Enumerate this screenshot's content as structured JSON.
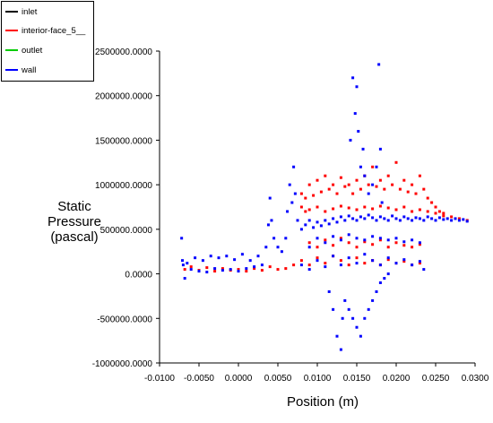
{
  "chart_data": {
    "type": "scatter",
    "xlabel": "Position (m)",
    "ylabel": [
      "Static",
      "Pressure",
      "(pascal)"
    ],
    "xlim": [
      -0.01,
      0.03
    ],
    "ylim": [
      -1000000,
      2500000
    ],
    "x_ticks": [
      -0.01,
      -0.005,
      0.0,
      0.005,
      0.01,
      0.015,
      0.02,
      0.025,
      0.03
    ],
    "x_tick_labels": [
      "-0.0100",
      "-0.0050",
      "0.0000",
      "0.0050",
      "0.0100",
      "0.0150",
      "0.0200",
      "0.0250",
      "0.0300"
    ],
    "y_ticks": [
      -1000000,
      -500000,
      0,
      500000,
      1000000,
      1500000,
      2000000,
      2500000
    ],
    "y_tick_labels": [
      "-1000000.0000",
      "-500000.0000",
      "0.0000",
      "500000.0000",
      "1000000.0000",
      "1500000.0000",
      "2000000.0000",
      "2500000.0000"
    ],
    "legend_position": "top-left",
    "series": [
      {
        "name": "inlet",
        "color": "#000000",
        "points": []
      },
      {
        "name": "interior-face_5__",
        "color": "#ff0000",
        "points": [
          [
            -0.0068,
            50000
          ],
          [
            -0.006,
            80000
          ],
          [
            -0.005,
            40000
          ],
          [
            -0.004,
            70000
          ],
          [
            -0.003,
            30000
          ],
          [
            -0.002,
            60000
          ],
          [
            -0.001,
            40000
          ],
          [
            0.0,
            50000
          ],
          [
            0.001,
            30000
          ],
          [
            0.002,
            60000
          ],
          [
            0.003,
            40000
          ],
          [
            0.004,
            80000
          ],
          [
            0.005,
            50000
          ],
          [
            0.006,
            60000
          ],
          [
            0.007,
            100000
          ],
          [
            0.008,
            900000
          ],
          [
            0.0085,
            850000
          ],
          [
            0.009,
            1000000
          ],
          [
            0.0095,
            880000
          ],
          [
            0.01,
            1050000
          ],
          [
            0.0105,
            920000
          ],
          [
            0.011,
            1100000
          ],
          [
            0.0115,
            950000
          ],
          [
            0.012,
            1000000
          ],
          [
            0.0125,
            900000
          ],
          [
            0.013,
            1080000
          ],
          [
            0.0135,
            980000
          ],
          [
            0.014,
            1000000
          ],
          [
            0.0145,
            900000
          ],
          [
            0.015,
            1050000
          ],
          [
            0.0155,
            950000
          ],
          [
            0.016,
            1100000
          ],
          [
            0.0165,
            1000000
          ],
          [
            0.017,
            1200000
          ],
          [
            0.0175,
            980000
          ],
          [
            0.018,
            1050000
          ],
          [
            0.0185,
            950000
          ],
          [
            0.019,
            1100000
          ],
          [
            0.0195,
            1000000
          ],
          [
            0.02,
            1250000
          ],
          [
            0.0205,
            950000
          ],
          [
            0.021,
            1050000
          ],
          [
            0.0215,
            920000
          ],
          [
            0.022,
            1000000
          ],
          [
            0.0225,
            900000
          ],
          [
            0.023,
            1100000
          ],
          [
            0.0235,
            950000
          ],
          [
            0.024,
            850000
          ],
          [
            0.0245,
            800000
          ],
          [
            0.025,
            750000
          ],
          [
            0.0255,
            700000
          ],
          [
            0.026,
            680000
          ],
          [
            0.008,
            750000
          ],
          [
            0.0085,
            700000
          ],
          [
            0.009,
            720000
          ],
          [
            0.01,
            750000
          ],
          [
            0.011,
            700000
          ],
          [
            0.012,
            730000
          ],
          [
            0.013,
            760000
          ],
          [
            0.014,
            740000
          ],
          [
            0.015,
            720000
          ],
          [
            0.016,
            750000
          ],
          [
            0.017,
            730000
          ],
          [
            0.018,
            760000
          ],
          [
            0.019,
            740000
          ],
          [
            0.02,
            720000
          ],
          [
            0.021,
            750000
          ],
          [
            0.022,
            700000
          ],
          [
            0.023,
            720000
          ],
          [
            0.024,
            700000
          ],
          [
            0.025,
            680000
          ],
          [
            0.026,
            650000
          ],
          [
            0.027,
            640000
          ],
          [
            0.028,
            620000
          ],
          [
            0.029,
            600000
          ],
          [
            0.009,
            350000
          ],
          [
            0.01,
            300000
          ],
          [
            0.011,
            380000
          ],
          [
            0.012,
            320000
          ],
          [
            0.013,
            400000
          ],
          [
            0.014,
            350000
          ],
          [
            0.015,
            300000
          ],
          [
            0.016,
            360000
          ],
          [
            0.017,
            330000
          ],
          [
            0.018,
            380000
          ],
          [
            0.019,
            300000
          ],
          [
            0.02,
            350000
          ],
          [
            0.021,
            320000
          ],
          [
            0.022,
            300000
          ],
          [
            0.023,
            330000
          ],
          [
            0.008,
            150000
          ],
          [
            0.009,
            100000
          ],
          [
            0.01,
            180000
          ],
          [
            0.011,
            120000
          ],
          [
            0.012,
            200000
          ],
          [
            0.013,
            150000
          ],
          [
            0.014,
            100000
          ],
          [
            0.015,
            180000
          ],
          [
            0.016,
            120000
          ],
          [
            0.017,
            150000
          ],
          [
            0.018,
            100000
          ],
          [
            0.019,
            160000
          ],
          [
            0.02,
            120000
          ],
          [
            0.021,
            140000
          ],
          [
            0.022,
            100000
          ],
          [
            0.023,
            120000
          ]
        ]
      },
      {
        "name": "outlet",
        "color": "#00cc00",
        "points": []
      },
      {
        "name": "wall",
        "color": "#0000ff",
        "points": [
          [
            -0.0072,
            400000
          ],
          [
            -0.0071,
            150000
          ],
          [
            -0.007,
            100000
          ],
          [
            -0.0068,
            -50000
          ],
          [
            -0.0065,
            120000
          ],
          [
            -0.006,
            50000
          ],
          [
            -0.0055,
            180000
          ],
          [
            -0.005,
            30000
          ],
          [
            -0.0045,
            150000
          ],
          [
            -0.004,
            20000
          ],
          [
            -0.0035,
            200000
          ],
          [
            -0.003,
            60000
          ],
          [
            -0.0025,
            180000
          ],
          [
            -0.002,
            40000
          ],
          [
            -0.0015,
            200000
          ],
          [
            -0.001,
            50000
          ],
          [
            -0.0005,
            160000
          ],
          [
            0.0,
            30000
          ],
          [
            0.0005,
            220000
          ],
          [
            0.001,
            60000
          ],
          [
            0.0015,
            150000
          ],
          [
            0.002,
            80000
          ],
          [
            0.0025,
            200000
          ],
          [
            0.003,
            100000
          ],
          [
            0.0035,
            300000
          ],
          [
            0.0038,
            550000
          ],
          [
            0.004,
            850000
          ],
          [
            0.0042,
            600000
          ],
          [
            0.0045,
            400000
          ],
          [
            0.005,
            300000
          ],
          [
            0.0055,
            250000
          ],
          [
            0.006,
            400000
          ],
          [
            0.0062,
            700000
          ],
          [
            0.0065,
            1000000
          ],
          [
            0.0068,
            800000
          ],
          [
            0.007,
            1200000
          ],
          [
            0.0072,
            900000
          ],
          [
            0.0075,
            600000
          ],
          [
            0.008,
            500000
          ],
          [
            0.0085,
            550000
          ],
          [
            0.009,
            600000
          ],
          [
            0.0095,
            520000
          ],
          [
            0.01,
            580000
          ],
          [
            0.0105,
            540000
          ],
          [
            0.011,
            600000
          ],
          [
            0.0115,
            560000
          ],
          [
            0.012,
            620000
          ],
          [
            0.0125,
            580000
          ],
          [
            0.013,
            640000
          ],
          [
            0.0135,
            600000
          ],
          [
            0.014,
            650000
          ],
          [
            0.0145,
            620000
          ],
          [
            0.015,
            600000
          ],
          [
            0.0155,
            640000
          ],
          [
            0.016,
            620000
          ],
          [
            0.0165,
            660000
          ],
          [
            0.017,
            630000
          ],
          [
            0.0175,
            600000
          ],
          [
            0.018,
            640000
          ],
          [
            0.0185,
            620000
          ],
          [
            0.019,
            600000
          ],
          [
            0.0195,
            650000
          ],
          [
            0.02,
            620000
          ],
          [
            0.0205,
            600000
          ],
          [
            0.021,
            640000
          ],
          [
            0.0215,
            620000
          ],
          [
            0.022,
            600000
          ],
          [
            0.0225,
            630000
          ],
          [
            0.023,
            620000
          ],
          [
            0.0235,
            600000
          ],
          [
            0.024,
            640000
          ],
          [
            0.0245,
            620000
          ],
          [
            0.025,
            600000
          ],
          [
            0.0255,
            630000
          ],
          [
            0.026,
            610000
          ],
          [
            0.0265,
            620000
          ],
          [
            0.027,
            600000
          ],
          [
            0.0275,
            620000
          ],
          [
            0.028,
            600000
          ],
          [
            0.0285,
            610000
          ],
          [
            0.029,
            590000
          ],
          [
            0.0142,
            1500000
          ],
          [
            0.0145,
            2200000
          ],
          [
            0.0148,
            1800000
          ],
          [
            0.015,
            2100000
          ],
          [
            0.0152,
            1600000
          ],
          [
            0.0155,
            1200000
          ],
          [
            0.0158,
            1400000
          ],
          [
            0.016,
            1100000
          ],
          [
            0.0165,
            900000
          ],
          [
            0.017,
            1000000
          ],
          [
            0.0175,
            1200000
          ],
          [
            0.0178,
            2350000
          ],
          [
            0.018,
            1400000
          ],
          [
            0.0182,
            800000
          ],
          [
            0.0115,
            -200000
          ],
          [
            0.012,
            -400000
          ],
          [
            0.0125,
            -700000
          ],
          [
            0.013,
            -850000
          ],
          [
            0.0132,
            -500000
          ],
          [
            0.0135,
            -300000
          ],
          [
            0.014,
            -400000
          ],
          [
            0.0145,
            -500000
          ],
          [
            0.015,
            -600000
          ],
          [
            0.0155,
            -700000
          ],
          [
            0.016,
            -500000
          ],
          [
            0.0165,
            -400000
          ],
          [
            0.017,
            -300000
          ],
          [
            0.0175,
            -200000
          ],
          [
            0.018,
            -100000
          ],
          [
            0.0185,
            -50000
          ],
          [
            0.019,
            0
          ],
          [
            0.008,
            100000
          ],
          [
            0.009,
            50000
          ],
          [
            0.01,
            150000
          ],
          [
            0.011,
            80000
          ],
          [
            0.012,
            200000
          ],
          [
            0.013,
            100000
          ],
          [
            0.014,
            180000
          ],
          [
            0.015,
            120000
          ],
          [
            0.016,
            220000
          ],
          [
            0.017,
            150000
          ],
          [
            0.018,
            100000
          ],
          [
            0.019,
            180000
          ],
          [
            0.02,
            120000
          ],
          [
            0.021,
            160000
          ],
          [
            0.022,
            100000
          ],
          [
            0.023,
            140000
          ],
          [
            0.0235,
            50000
          ],
          [
            0.009,
            300000
          ],
          [
            0.01,
            400000
          ],
          [
            0.011,
            350000
          ],
          [
            0.012,
            420000
          ],
          [
            0.013,
            380000
          ],
          [
            0.014,
            440000
          ],
          [
            0.015,
            400000
          ],
          [
            0.016,
            380000
          ],
          [
            0.017,
            420000
          ],
          [
            0.018,
            400000
          ],
          [
            0.019,
            380000
          ],
          [
            0.02,
            400000
          ],
          [
            0.021,
            360000
          ],
          [
            0.022,
            380000
          ],
          [
            0.023,
            350000
          ]
        ]
      }
    ]
  }
}
